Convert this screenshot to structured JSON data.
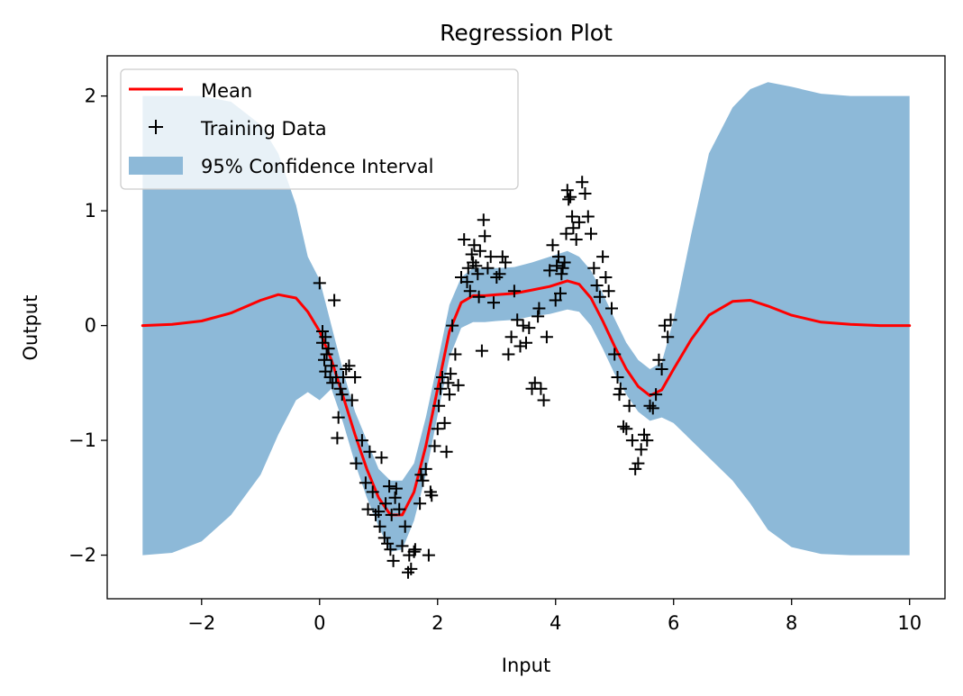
{
  "chart_data": {
    "type": "line",
    "title": "Regression Plot",
    "xlabel": "Input",
    "ylabel": "Output",
    "xlim": [
      -3.6,
      10.6
    ],
    "ylim": [
      -2.38,
      2.35
    ],
    "x_ticks": [
      -2,
      0,
      2,
      4,
      6,
      8,
      10
    ],
    "y_ticks": [
      -2,
      -1,
      0,
      1,
      2
    ],
    "grid": false,
    "legend_position": "top-left",
    "colors": {
      "mean": "#ff0000",
      "band": "#8db9d8",
      "points": "#000000"
    },
    "legend": [
      {
        "key": "mean",
        "label": "Mean"
      },
      {
        "key": "points",
        "label": "Training Data"
      },
      {
        "key": "band",
        "label": "95% Confidence Interval"
      }
    ],
    "series": [
      {
        "name": "Mean",
        "kind": "line",
        "x": [
          -3,
          -2.5,
          -2,
          -1.5,
          -1,
          -0.7,
          -0.4,
          -0.2,
          0,
          0.2,
          0.4,
          0.6,
          0.8,
          1.0,
          1.2,
          1.4,
          1.6,
          1.8,
          2.0,
          2.2,
          2.4,
          2.6,
          2.8,
          3.0,
          3.3,
          3.6,
          3.9,
          4.2,
          4.4,
          4.6,
          4.8,
          5.0,
          5.2,
          5.4,
          5.6,
          5.8,
          6.0,
          6.3,
          6.6,
          7.0,
          7.3,
          7.6,
          8.0,
          8.5,
          9.0,
          9.5,
          10.0
        ],
        "y": [
          0.0,
          0.01,
          0.04,
          0.11,
          0.22,
          0.27,
          0.24,
          0.12,
          -0.05,
          -0.3,
          -0.62,
          -0.95,
          -1.25,
          -1.5,
          -1.65,
          -1.65,
          -1.45,
          -1.05,
          -0.55,
          -0.05,
          0.2,
          0.26,
          0.26,
          0.27,
          0.28,
          0.31,
          0.34,
          0.39,
          0.36,
          0.24,
          0.04,
          -0.18,
          -0.38,
          -0.53,
          -0.61,
          -0.56,
          -0.38,
          -0.12,
          0.09,
          0.21,
          0.22,
          0.17,
          0.09,
          0.03,
          0.01,
          0.0,
          0.0
        ]
      },
      {
        "name": "95% Confidence Interval",
        "kind": "band",
        "x": [
          -3,
          -2.5,
          -2,
          -1.5,
          -1,
          -0.7,
          -0.4,
          -0.2,
          0,
          0.2,
          0.4,
          0.6,
          0.8,
          1.0,
          1.2,
          1.4,
          1.6,
          1.8,
          2.0,
          2.2,
          2.4,
          2.6,
          2.8,
          3.0,
          3.3,
          3.6,
          3.9,
          4.2,
          4.4,
          4.6,
          4.8,
          5.0,
          5.2,
          5.4,
          5.6,
          5.8,
          6.0,
          6.3,
          6.6,
          7.0,
          7.3,
          7.6,
          8.0,
          8.5,
          9.0,
          9.5,
          10.0
        ],
        "lower": [
          -2.0,
          -1.98,
          -1.88,
          -1.65,
          -1.3,
          -0.95,
          -0.65,
          -0.58,
          -0.65,
          -0.55,
          -0.85,
          -1.2,
          -1.5,
          -1.75,
          -1.97,
          -1.95,
          -1.7,
          -1.3,
          -0.78,
          -0.28,
          -0.02,
          0.03,
          0.03,
          0.04,
          0.05,
          0.08,
          0.1,
          0.14,
          0.12,
          0.0,
          -0.2,
          -0.42,
          -0.6,
          -0.75,
          -0.83,
          -0.8,
          -0.85,
          -1.0,
          -1.15,
          -1.35,
          -1.55,
          -1.78,
          -1.93,
          -1.99,
          -2.0,
          -2.0,
          -2.0
        ],
        "upper": [
          2.0,
          2.0,
          2.0,
          1.95,
          1.75,
          1.5,
          1.05,
          0.6,
          0.4,
          0.0,
          -0.4,
          -0.75,
          -1.0,
          -1.25,
          -1.35,
          -1.35,
          -1.2,
          -0.8,
          -0.32,
          0.18,
          0.42,
          0.5,
          0.5,
          0.5,
          0.51,
          0.55,
          0.6,
          0.65,
          0.6,
          0.48,
          0.28,
          0.06,
          -0.15,
          -0.3,
          -0.38,
          -0.32,
          0.05,
          0.8,
          1.5,
          1.9,
          2.06,
          2.12,
          2.08,
          2.02,
          2.0,
          2.0,
          2.0
        ]
      },
      {
        "name": "Training Data",
        "kind": "scatter",
        "x": [
          0.0,
          0.05,
          0.05,
          0.08,
          0.1,
          0.1,
          0.12,
          0.15,
          0.18,
          0.2,
          0.22,
          0.25,
          0.28,
          0.3,
          0.32,
          0.35,
          0.38,
          0.4,
          0.45,
          0.5,
          0.55,
          0.6,
          0.62,
          0.72,
          0.78,
          0.82,
          0.85,
          0.9,
          0.95,
          1.0,
          1.02,
          1.05,
          1.1,
          1.12,
          1.15,
          1.18,
          1.2,
          1.22,
          1.25,
          1.28,
          1.3,
          1.35,
          1.4,
          1.45,
          1.5,
          1.52,
          1.55,
          1.6,
          1.62,
          1.7,
          1.72,
          1.75,
          1.8,
          1.85,
          1.88,
          1.9,
          1.95,
          2.0,
          2.02,
          2.05,
          2.08,
          2.12,
          2.15,
          2.18,
          2.2,
          2.22,
          2.25,
          2.3,
          2.35,
          2.4,
          2.45,
          2.5,
          2.52,
          2.55,
          2.58,
          2.6,
          2.62,
          2.65,
          2.68,
          2.7,
          2.72,
          2.75,
          2.78,
          2.8,
          2.85,
          2.9,
          2.95,
          3.0,
          3.05,
          3.1,
          3.15,
          3.2,
          3.25,
          3.3,
          3.35,
          3.4,
          3.45,
          3.5,
          3.55,
          3.6,
          3.65,
          3.7,
          3.72,
          3.75,
          3.8,
          3.85,
          3.9,
          3.95,
          4.0,
          4.02,
          4.05,
          4.08,
          4.1,
          4.12,
          4.15,
          4.18,
          4.2,
          4.22,
          4.25,
          4.28,
          4.3,
          4.35,
          4.4,
          4.45,
          4.5,
          4.55,
          4.6,
          4.65,
          4.7,
          4.75,
          4.8,
          4.85,
          4.9,
          4.95,
          5.0,
          5.05,
          5.08,
          5.1,
          5.15,
          5.2,
          5.25,
          5.3,
          5.35,
          5.4,
          5.45,
          5.5,
          5.55,
          5.6,
          5.65,
          5.7,
          5.75,
          5.8,
          5.85,
          5.9,
          5.95
        ],
        "y": [
          0.37,
          -0.05,
          -0.15,
          -0.3,
          -0.1,
          -0.4,
          -0.25,
          -0.2,
          -0.45,
          -0.35,
          -0.5,
          0.22,
          -0.45,
          -0.98,
          -0.8,
          -0.55,
          -0.6,
          -0.45,
          -0.38,
          -0.35,
          -0.65,
          -0.45,
          -1.2,
          -1.0,
          -1.37,
          -1.6,
          -1.1,
          -1.45,
          -1.65,
          -1.62,
          -1.75,
          -1.15,
          -1.85,
          -1.55,
          -1.9,
          -1.4,
          -1.95,
          -1.65,
          -2.05,
          -1.5,
          -1.42,
          -1.6,
          -1.92,
          -1.75,
          -2.15,
          -2.0,
          -2.12,
          -1.97,
          -1.95,
          -1.55,
          -1.3,
          -1.35,
          -1.25,
          -2.0,
          -1.45,
          -1.48,
          -1.05,
          -0.9,
          -0.7,
          -0.55,
          -0.45,
          -0.85,
          -1.1,
          -0.5,
          -0.6,
          -0.42,
          0.0,
          -0.25,
          -0.52,
          0.42,
          0.75,
          0.38,
          0.5,
          0.3,
          0.62,
          0.55,
          0.7,
          0.52,
          0.45,
          0.25,
          0.65,
          -0.22,
          0.92,
          0.78,
          0.5,
          0.6,
          0.2,
          0.42,
          0.45,
          0.6,
          0.55,
          -0.25,
          -0.1,
          0.3,
          0.05,
          -0.18,
          0.0,
          -0.15,
          -0.02,
          -0.55,
          -0.5,
          0.08,
          0.15,
          -0.55,
          -0.65,
          -0.1,
          0.48,
          0.7,
          0.22,
          0.52,
          0.6,
          0.28,
          0.45,
          0.5,
          0.55,
          0.8,
          1.18,
          1.1,
          1.12,
          0.95,
          0.85,
          0.75,
          0.9,
          1.25,
          1.15,
          0.95,
          0.8,
          0.5,
          0.35,
          0.25,
          0.6,
          0.42,
          0.3,
          0.15,
          -0.25,
          -0.45,
          -0.6,
          -0.55,
          -0.88,
          -0.9,
          -0.7,
          -1.0,
          -1.25,
          -1.2,
          -1.08,
          -0.95,
          -1.0,
          -0.7,
          -0.72,
          -0.6,
          -0.3,
          -0.38,
          0.0,
          -0.1,
          0.05
        ]
      }
    ]
  }
}
